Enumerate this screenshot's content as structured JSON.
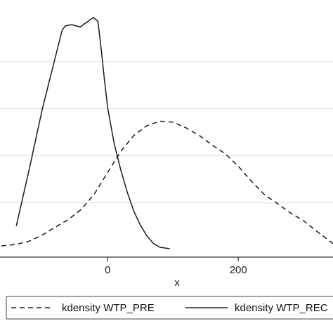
{
  "chart_data": {
    "type": "line",
    "xlabel": "x",
    "ylabel": "",
    "title": "",
    "xlim": [
      -165,
      345
    ],
    "ylim": [
      0,
      1
    ],
    "x_ticks": [
      {
        "value": 0,
        "label": "0"
      },
      {
        "value": 200,
        "label": "200"
      }
    ],
    "y_grid": [
      0.2,
      0.4,
      0.6,
      0.8
    ],
    "grid": true,
    "legend": {
      "placement": "bottom",
      "entries": [
        {
          "label": "kdensity WTP_PRE",
          "style": "dashed"
        },
        {
          "label": "kdensity WTP_REC",
          "style": "solid"
        }
      ]
    },
    "series": [
      {
        "name": "kdensity WTP_PRE",
        "style": "dashed",
        "points": [
          [
            -163,
            0.018
          ],
          [
            -140,
            0.024
          ],
          [
            -120,
            0.038
          ],
          [
            -100,
            0.064
          ],
          [
            -80,
            0.098
          ],
          [
            -60,
            0.13
          ],
          [
            -40,
            0.174
          ],
          [
            -20,
            0.24
          ],
          [
            0,
            0.33
          ],
          [
            20,
            0.418
          ],
          [
            40,
            0.486
          ],
          [
            60,
            0.527
          ],
          [
            80,
            0.546
          ],
          [
            100,
            0.542
          ],
          [
            120,
            0.518
          ],
          [
            140,
            0.486
          ],
          [
            160,
            0.445
          ],
          [
            180,
            0.408
          ],
          [
            200,
            0.355
          ],
          [
            220,
            0.292
          ],
          [
            240,
            0.235
          ],
          [
            260,
            0.197
          ],
          [
            280,
            0.157
          ],
          [
            300,
            0.124
          ],
          [
            320,
            0.08
          ],
          [
            345,
            0.028
          ]
        ]
      },
      {
        "name": "kdensity WTP_REC",
        "style": "solid",
        "points": [
          [
            -140,
            0.102
          ],
          [
            -120,
            0.345
          ],
          [
            -100,
            0.6
          ],
          [
            -80,
            0.82
          ],
          [
            -70,
            0.93
          ],
          [
            -65,
            0.95
          ],
          [
            -55,
            0.955
          ],
          [
            -42,
            0.945
          ],
          [
            -35,
            0.96
          ],
          [
            -22,
            0.985
          ],
          [
            -15,
            0.97
          ],
          [
            -10,
            0.85
          ],
          [
            -5,
            0.72
          ],
          [
            0,
            0.6
          ],
          [
            10,
            0.45
          ],
          [
            20,
            0.34
          ],
          [
            30,
            0.245
          ],
          [
            40,
            0.165
          ],
          [
            50,
            0.105
          ],
          [
            60,
            0.06
          ],
          [
            70,
            0.028
          ],
          [
            80,
            0.012
          ],
          [
            95,
            0.006
          ]
        ]
      }
    ]
  }
}
